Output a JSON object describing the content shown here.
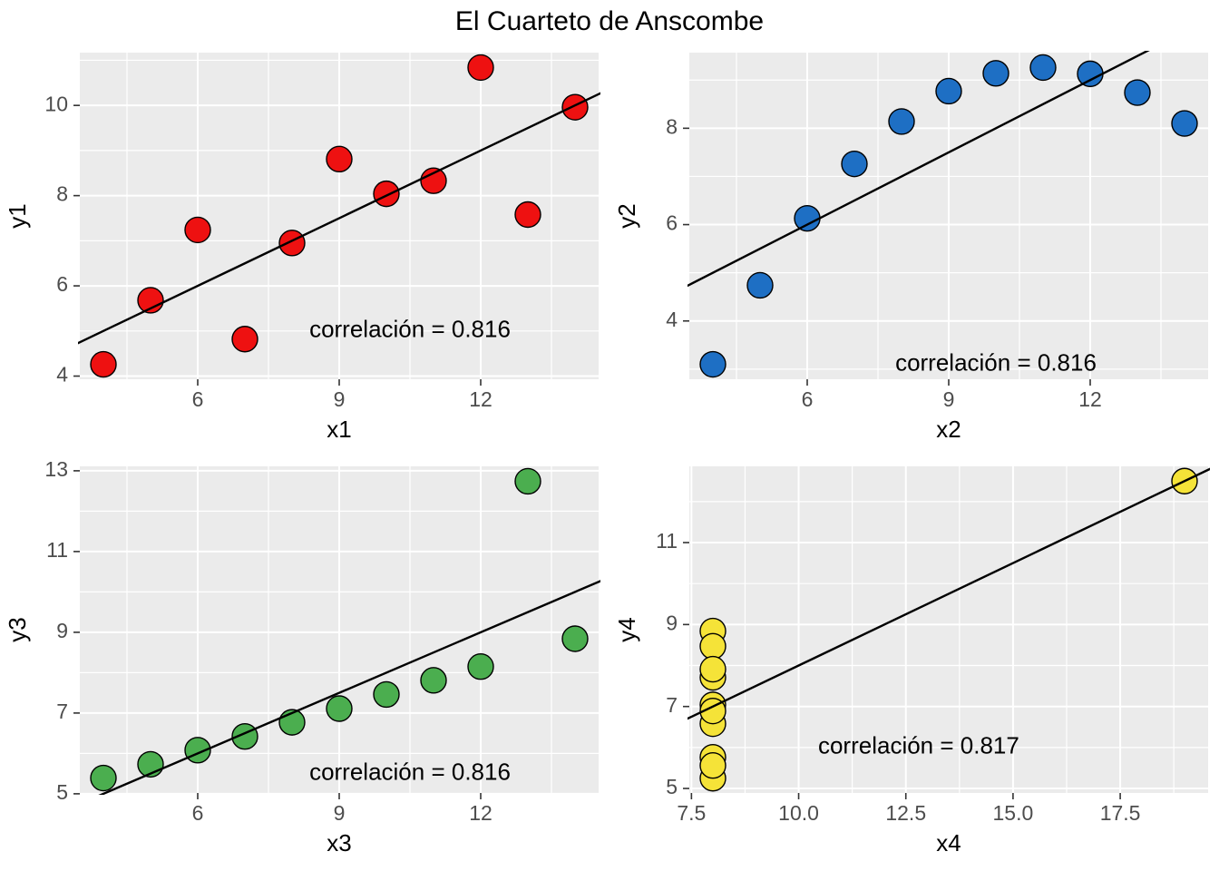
{
  "title": "El Cuarteto de Anscombe",
  "colors": {
    "panel_background": "#EBEBEB",
    "grid_line": "#FFFFFF",
    "tick_text": "#4D4D4D",
    "tick_mark": "#333333",
    "axis_title_text": "#000000",
    "regression_line": "#000000",
    "point_stroke": "#000000",
    "set1_point": "#EE1111",
    "set2_point": "#1E6FC4",
    "set3_point": "#4BAE4F",
    "set4_point": "#F5E338"
  },
  "chart_data": [
    {
      "type": "scatter",
      "name": "anscombe-set-1",
      "xlabel": "x1",
      "ylabel": "y1",
      "x": [
        10,
        8,
        13,
        9,
        11,
        14,
        6,
        4,
        12,
        7,
        5
      ],
      "y": [
        8.04,
        6.95,
        7.58,
        8.81,
        8.33,
        9.96,
        7.24,
        4.26,
        10.84,
        4.82,
        5.68
      ],
      "point_color_key": "set1_point",
      "xlim": [
        3.5,
        14.5
      ],
      "ylim": [
        3.93,
        11.17
      ],
      "xtick_vals": [
        6,
        9,
        12
      ],
      "xtick_labels": [
        "6",
        "9",
        "12"
      ],
      "ytick_vals": [
        4,
        6,
        8,
        10
      ],
      "ytick_labels": [
        "4",
        "6",
        "8",
        "10"
      ],
      "xminor": [
        4.5,
        7.5,
        10.5,
        13.5
      ],
      "yminor": [
        5,
        7,
        9,
        11
      ],
      "regression": {
        "intercept": 3.0,
        "slope": 0.5
      },
      "annotation": {
        "text": "correlación =  0.816",
        "x": 10.5,
        "y": 5.0
      },
      "grid": true,
      "legend": "none"
    },
    {
      "type": "scatter",
      "name": "anscombe-set-2",
      "xlabel": "x2",
      "ylabel": "y2",
      "x": [
        10,
        8,
        13,
        9,
        11,
        14,
        6,
        4,
        12,
        7,
        5
      ],
      "y": [
        9.14,
        8.14,
        8.74,
        8.77,
        9.26,
        8.1,
        6.13,
        3.1,
        9.13,
        7.26,
        4.74
      ],
      "point_color_key": "set2_point",
      "xlim": [
        3.5,
        14.5
      ],
      "ylim": [
        2.79,
        9.57
      ],
      "xtick_vals": [
        6,
        9,
        12
      ],
      "xtick_labels": [
        "6",
        "9",
        "12"
      ],
      "ytick_vals": [
        4,
        6,
        8
      ],
      "ytick_labels": [
        "4",
        "6",
        "8"
      ],
      "xminor": [
        4.5,
        7.5,
        10.5,
        13.5
      ],
      "yminor": [
        3,
        5,
        7,
        9
      ],
      "regression": {
        "intercept": 3.0,
        "slope": 0.5
      },
      "annotation": {
        "text": "correlación =  0.816",
        "x": 10.0,
        "y": 3.1
      },
      "grid": true,
      "legend": "none"
    },
    {
      "type": "scatter",
      "name": "anscombe-set-3",
      "xlabel": "x3",
      "ylabel": "y3",
      "x": [
        10,
        8,
        13,
        9,
        11,
        14,
        6,
        4,
        12,
        7,
        5
      ],
      "y": [
        7.46,
        6.77,
        12.74,
        7.11,
        7.81,
        8.84,
        6.08,
        5.39,
        8.15,
        6.42,
        5.73
      ],
      "point_color_key": "set3_point",
      "xlim": [
        3.5,
        14.5
      ],
      "ylim": [
        5.02,
        13.11
      ],
      "xtick_vals": [
        6,
        9,
        12
      ],
      "xtick_labels": [
        "6",
        "9",
        "12"
      ],
      "ytick_vals": [
        5,
        7,
        9,
        11,
        13
      ],
      "ytick_labels": [
        "5",
        "7",
        "9",
        "11",
        "13"
      ],
      "xminor": [
        4.5,
        7.5,
        10.5,
        13.5
      ],
      "yminor": [
        6,
        8,
        10,
        12
      ],
      "regression": {
        "intercept": 3.0,
        "slope": 0.5
      },
      "annotation": {
        "text": "correlación =  0.816",
        "x": 10.5,
        "y": 5.5
      },
      "grid": true,
      "legend": "none"
    },
    {
      "type": "scatter",
      "name": "anscombe-set-4",
      "xlabel": "x4",
      "ylabel": "y4",
      "x": [
        8,
        8,
        8,
        8,
        8,
        8,
        8,
        19,
        8,
        8,
        8
      ],
      "y": [
        6.58,
        5.76,
        7.71,
        8.84,
        8.47,
        7.04,
        5.25,
        12.5,
        5.56,
        7.91,
        6.89
      ],
      "point_color_key": "set4_point",
      "xlim": [
        7.45,
        19.55
      ],
      "ylim": [
        4.89,
        12.86
      ],
      "xtick_vals": [
        7.5,
        10.0,
        12.5,
        15.0,
        17.5
      ],
      "xtick_labels": [
        "7.5",
        "10.0",
        "12.5",
        "15.0",
        "17.5"
      ],
      "ytick_vals": [
        5,
        7,
        9,
        11
      ],
      "ytick_labels": [
        "5",
        "7",
        "9",
        "11"
      ],
      "xminor": [
        8.75,
        11.25,
        13.75,
        16.25,
        18.75
      ],
      "yminor": [
        6,
        8,
        10,
        12
      ],
      "regression": {
        "intercept": 3.0,
        "slope": 0.5
      },
      "annotation": {
        "text": "correlación =  0.817",
        "x": 12.8,
        "y": 6.0
      },
      "grid": true,
      "legend": "none"
    }
  ]
}
